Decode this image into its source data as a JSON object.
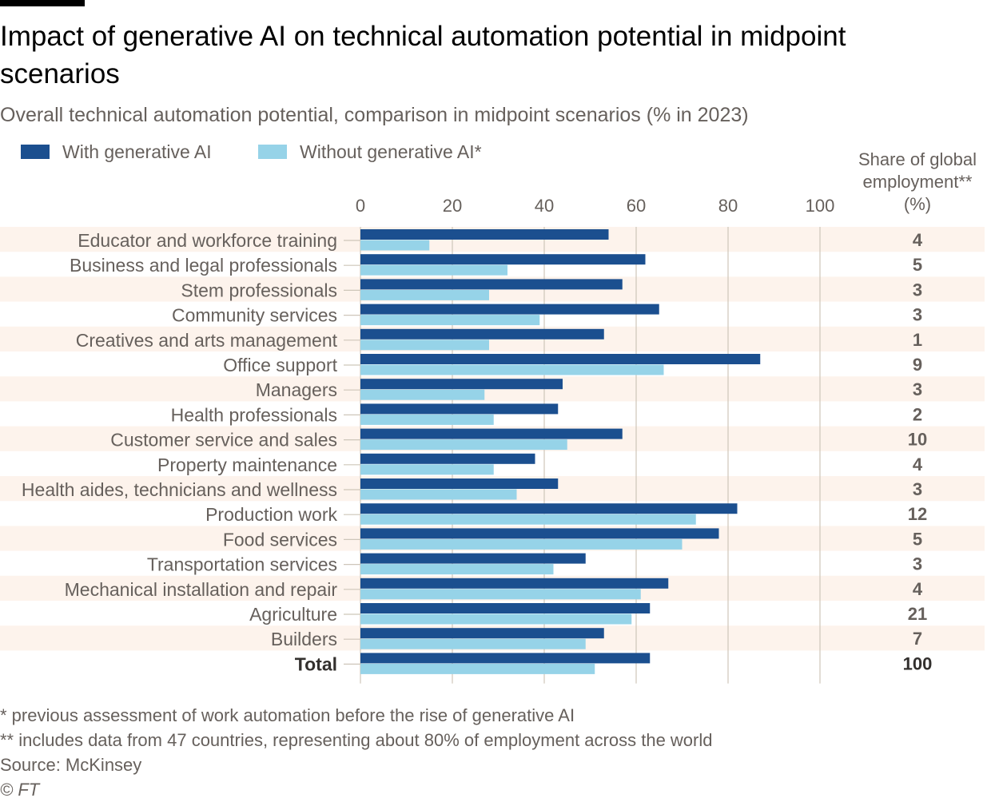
{
  "title": "Impact of generative AI on technical automation potential in midpoint scenarios",
  "subtitle": "Overall technical automation potential, comparison in midpoint scenarios (% in 2023)",
  "legend": {
    "with_label": "With generative AI",
    "without_label": "Without generative AI*"
  },
  "share_header": {
    "line1": "Share of global",
    "line2": "employment**",
    "line3": "(%)"
  },
  "colors": {
    "with": "#1b4f8f",
    "without": "#96d3e8",
    "band": "#fdf3ec",
    "grid": "#cec6b9"
  },
  "chart_data": {
    "type": "bar",
    "orientation": "horizontal",
    "title": "Impact of generative AI on technical automation potential in midpoint scenarios",
    "xlabel": "%",
    "xlim": [
      0,
      100
    ],
    "xticks": [
      0,
      20,
      40,
      60,
      80,
      100
    ],
    "categories": [
      "Educator and workforce training",
      "Business and legal professionals",
      "Stem professionals",
      "Community services",
      "Creatives and arts management",
      "Office support",
      "Managers",
      "Health professionals",
      "Customer service and sales",
      "Property maintenance",
      "Health aides, technicians and wellness",
      "Production work",
      "Food services",
      "Transportation services",
      "Mechanical installation and repair",
      "Agriculture",
      "Builders",
      "Total"
    ],
    "series": [
      {
        "name": "With generative AI",
        "values": [
          54,
          62,
          57,
          65,
          53,
          87,
          44,
          43,
          57,
          38,
          43,
          82,
          78,
          49,
          67,
          63,
          53,
          63
        ]
      },
      {
        "name": "Without generative AI*",
        "values": [
          15,
          32,
          28,
          39,
          28,
          66,
          27,
          29,
          45,
          29,
          34,
          73,
          70,
          42,
          61,
          59,
          49,
          51
        ]
      }
    ],
    "share_of_global_employment": [
      "4",
      "5",
      "3",
      "3",
      "1",
      "9",
      "3",
      "2",
      "10",
      "4",
      "3",
      "12",
      "5",
      "3",
      "4",
      "21",
      "7",
      "100"
    ]
  },
  "footnotes": {
    "note1": "* previous assessment of work automation before the rise of generative AI",
    "note2": "** includes data from 47 countries, representing about 80% of employment across the world",
    "source": "Source: McKinsey",
    "copyright": "© FT"
  }
}
